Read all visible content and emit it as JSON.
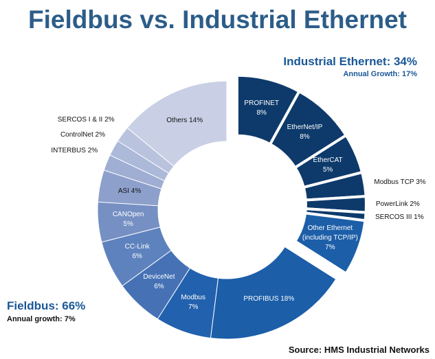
{
  "chart_data": {
    "type": "pie",
    "donut": true,
    "title": "Fieldbus vs. Industrial Ethernet",
    "source": "Source: HMS Industrial Networks",
    "series": [
      {
        "label": "Industrial Ethernet: 34%",
        "note": "Annual Growth: 17%",
        "exploded": true,
        "categories": [
          "PROFINET",
          "EtherNet/IP",
          "EtherCAT",
          "Modbus TCP",
          "PowerLink",
          "SERCOS III",
          "Other Ethernet (including TCP/IP)"
        ],
        "values": [
          8,
          8,
          5,
          3,
          2,
          1,
          7
        ],
        "value_labels": [
          "8%",
          "8%",
          "5%",
          "3%",
          "2%",
          "1%",
          "7%"
        ],
        "colors": [
          "#0d3a6b",
          "#0d3a6b",
          "#0d3a6b",
          "#0d3a6b",
          "#0d3a6b",
          "#0d3a6b",
          "#1c5ea8"
        ]
      },
      {
        "label": "Fieldbus: 66%",
        "note": "Annual growth: 7%",
        "exploded": false,
        "categories": [
          "PROFIBUS",
          "Modbus",
          "DeviceNet",
          "CC-Link",
          "CANOpen",
          "ASI",
          "INTERBUS",
          "ControlNet",
          "SERCOS I & II",
          "Others"
        ],
        "values": [
          18,
          7,
          6,
          6,
          5,
          4,
          2,
          2,
          2,
          14
        ],
        "value_labels": [
          "18%",
          "7%",
          "6%",
          "6%",
          "5%",
          "4%",
          "2%",
          "2%",
          "2%",
          "14%"
        ],
        "colors": [
          "#1c5ea8",
          "#2261ad",
          "#4672b5",
          "#5e82bd",
          "#7690c4",
          "#8d9fcb",
          "#a0aed3",
          "#adb9d9",
          "#b9c3de",
          "#c9d0e5"
        ]
      }
    ]
  }
}
